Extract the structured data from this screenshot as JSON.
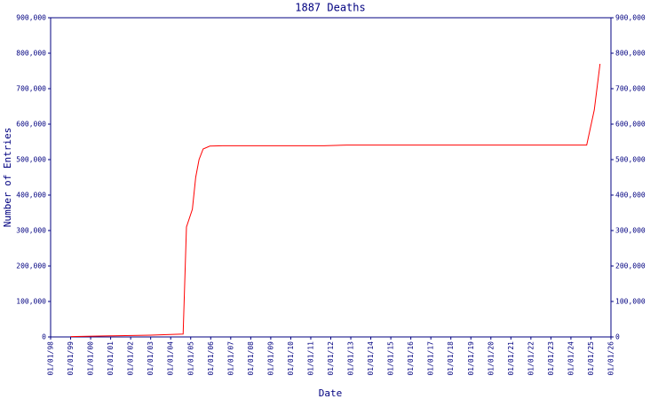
{
  "chart_data": {
    "type": "line",
    "title": "1887 Deaths",
    "x_label": "Date",
    "y_label": "Number of Entries",
    "x": [
      "01/01/99",
      "01/01/01",
      "01/01/03",
      "08/15/04",
      "10/15/04",
      "02/01/05",
      "04/01/05",
      "06/01/05",
      "08/15/05",
      "12/15/05",
      "08/01/06",
      "09/01/11",
      "10/15/12",
      "10/15/24",
      "03/01/25",
      "06/15/25"
    ],
    "series": [
      {
        "name": "1887 Deaths",
        "color": "#ff0000",
        "values": [
          1000,
          3000,
          5000,
          8000,
          310000,
          360000,
          450000,
          500000,
          530000,
          538000,
          539000,
          539000,
          541000,
          541000,
          640000,
          770000
        ]
      }
    ],
    "xlim": [
      "01/01/98",
      "01/01/26"
    ],
    "xticks": [
      "01/01/98",
      "01/01/99",
      "01/01/00",
      "01/01/01",
      "01/01/02",
      "01/01/03",
      "01/01/04",
      "01/01/05",
      "01/01/06",
      "01/01/07",
      "01/01/08",
      "01/01/09",
      "01/01/10",
      "01/01/11",
      "01/01/12",
      "01/01/13",
      "01/01/14",
      "01/01/15",
      "01/01/16",
      "01/01/17",
      "01/01/18",
      "01/01/19",
      "01/01/20",
      "01/01/21",
      "01/01/22",
      "01/01/23",
      "01/01/24",
      "01/01/25",
      "01/01/26"
    ],
    "ylim": [
      0,
      900000
    ],
    "yticks": [
      0,
      {
        "value": 100000,
        "label": "100,000"
      },
      {
        "value": 200000,
        "label": "200,000"
      },
      {
        "value": 300000,
        "label": "300,000"
      },
      {
        "value": 400000,
        "label": "400,000"
      },
      {
        "value": 500000,
        "label": "500,000"
      },
      {
        "value": 600000,
        "label": "600,000"
      },
      {
        "value": 700000,
        "label": "700,000"
      },
      {
        "value": 800000,
        "label": "800,000"
      },
      {
        "value": 900000,
        "label": "900,000"
      }
    ],
    "y2lim": [
      0,
      900000
    ],
    "y2ticks": [
      0,
      {
        "value": 100000,
        "label": "100,000"
      },
      {
        "value": 200000,
        "label": "200,000"
      },
      {
        "value": 300000,
        "label": "300,000"
      },
      {
        "value": 400000,
        "label": "400,000"
      },
      {
        "value": 500000,
        "label": "500,000"
      },
      {
        "value": 600000,
        "label": "600,000"
      },
      {
        "value": 700000,
        "label": "700,000"
      },
      {
        "value": 800000,
        "label": "800,000"
      },
      {
        "value": 900000,
        "label": "900,000"
      }
    ],
    "axis_color": "#000080"
  }
}
